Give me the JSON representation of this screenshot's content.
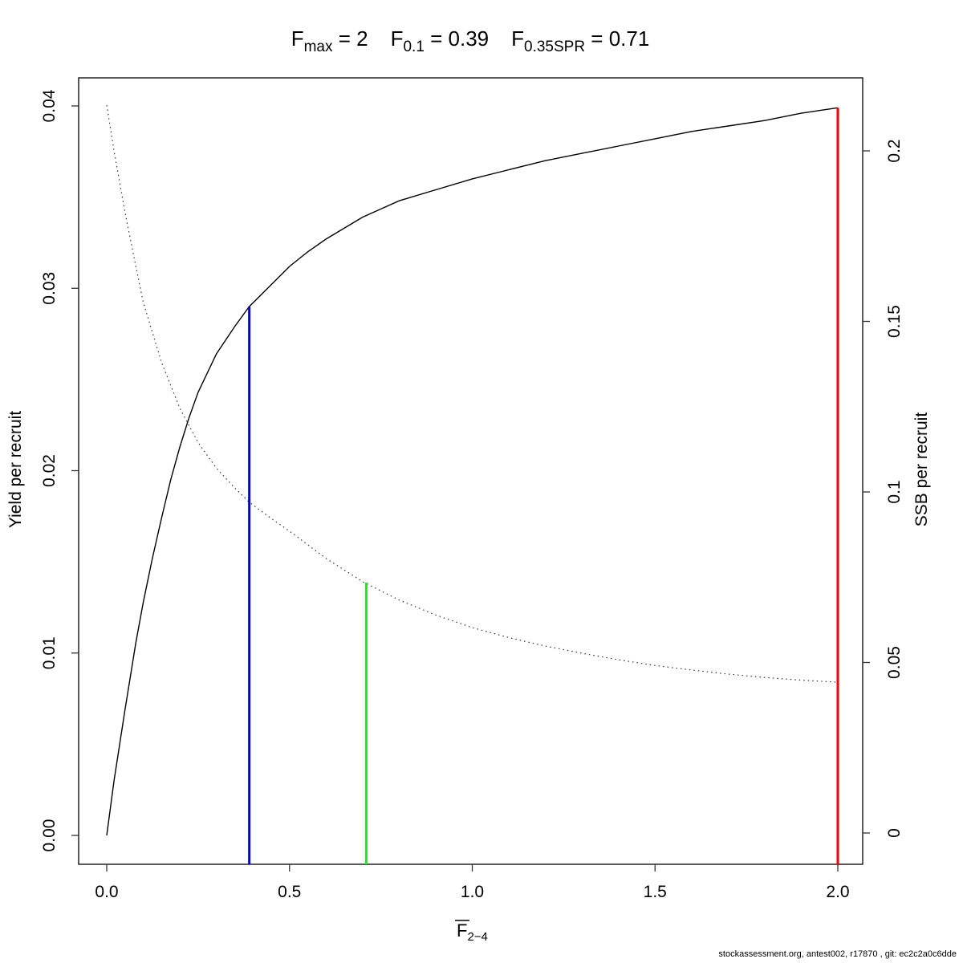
{
  "footer": "stockassessment.org, antest002, r17870 , git: ec2c2a0c6dde",
  "title_parts": [
    {
      "base": "F",
      "sub": "max",
      "rest": " = 2"
    },
    {
      "base": "F",
      "sub": "0.1",
      "rest": " = 0.39"
    },
    {
      "base": "F",
      "sub": "0.35SPR",
      "rest": " = 0.71"
    }
  ],
  "chart_data": {
    "type": "line",
    "title": "Fmax = 2    F0.1 = 0.39    F0.35SPR = 0.71",
    "xlabel": {
      "base": "F",
      "overline": true,
      "sub": "2−4"
    },
    "ylabel_left": "Yield per recruit",
    "ylabel_right": "SSB per recruit",
    "grid": false,
    "legend": null,
    "x_axis": {
      "range": [
        0,
        2.08
      ],
      "ticks": [
        0.0,
        0.5,
        1.0,
        1.5,
        2.0
      ],
      "tick_labels": [
        "0.0",
        "0.5",
        "1.0",
        "1.5",
        "2.0"
      ]
    },
    "y_axis_left": {
      "range": [
        0,
        0.0415
      ],
      "ticks": [
        0.0,
        0.01,
        0.02,
        0.03,
        0.04
      ],
      "tick_labels": [
        "0.00",
        "0.01",
        "0.02",
        "0.03",
        "0.04"
      ]
    },
    "y_axis_right": {
      "range": [
        0,
        0.2215
      ],
      "ticks": [
        0,
        0.05,
        0.1,
        0.15,
        0.2
      ],
      "tick_labels": [
        "0",
        "0.05",
        "0.1",
        "0.15",
        "0.2"
      ]
    },
    "reference_points": {
      "Fmax": 2,
      "F0.1": 0.39,
      "F0.35SPR": 0.71
    },
    "series": [
      {
        "name": "yield-per-recruit",
        "axis": "left",
        "style": "solid",
        "color": "#000000",
        "x": [
          0,
          0.02,
          0.05,
          0.08,
          0.1,
          0.125,
          0.15,
          0.175,
          0.2,
          0.225,
          0.25,
          0.3,
          0.35,
          0.39,
          0.45,
          0.5,
          0.55,
          0.6,
          0.7,
          0.8,
          0.9,
          1.0,
          1.1,
          1.2,
          1.3,
          1.4,
          1.5,
          1.6,
          1.7,
          1.8,
          1.9,
          2.0
        ],
        "y": [
          0,
          0.003,
          0.0069,
          0.0106,
          0.0128,
          0.0152,
          0.0174,
          0.0195,
          0.0213,
          0.0229,
          0.0243,
          0.0264,
          0.0279,
          0.029,
          0.0302,
          0.0312,
          0.032,
          0.0327,
          0.0339,
          0.0348,
          0.0354,
          0.036,
          0.0365,
          0.037,
          0.0374,
          0.0378,
          0.0382,
          0.0386,
          0.0389,
          0.0392,
          0.0396,
          0.0399
        ]
      },
      {
        "name": "ssb-per-recruit",
        "axis": "right",
        "style": "dotted",
        "color": "#000000",
        "x": [
          0,
          0.02,
          0.05,
          0.08,
          0.1,
          0.15,
          0.2,
          0.25,
          0.3,
          0.35,
          0.39,
          0.45,
          0.5,
          0.6,
          0.7,
          0.8,
          0.9,
          1.0,
          1.1,
          1.2,
          1.3,
          1.4,
          1.5,
          1.6,
          1.7,
          1.8,
          1.9,
          2.0
        ],
        "y": [
          0.2134,
          0.2,
          0.182,
          0.166,
          0.1555,
          0.138,
          0.1245,
          0.1145,
          0.107,
          0.1012,
          0.097,
          0.0922,
          0.0885,
          0.0805,
          0.0737,
          0.0683,
          0.0639,
          0.0602,
          0.0573,
          0.0548,
          0.0527,
          0.0508,
          0.0491,
          0.0478,
          0.0466,
          0.0456,
          0.0448,
          0.0442
        ]
      }
    ],
    "reference_lines": [
      {
        "name": "f01-refline",
        "x": 0.39,
        "color": "#0000ff",
        "top_axis": "left",
        "top_value": 0.029
      },
      {
        "name": "f035spr-refline",
        "x": 0.71,
        "color": "#00ff00",
        "top_axis": "right",
        "top_value": 0.0734
      },
      {
        "name": "fmax-refline",
        "x": 2.0,
        "color": "#ff0000",
        "top_axis": "left",
        "top_value": 0.0399
      }
    ]
  }
}
